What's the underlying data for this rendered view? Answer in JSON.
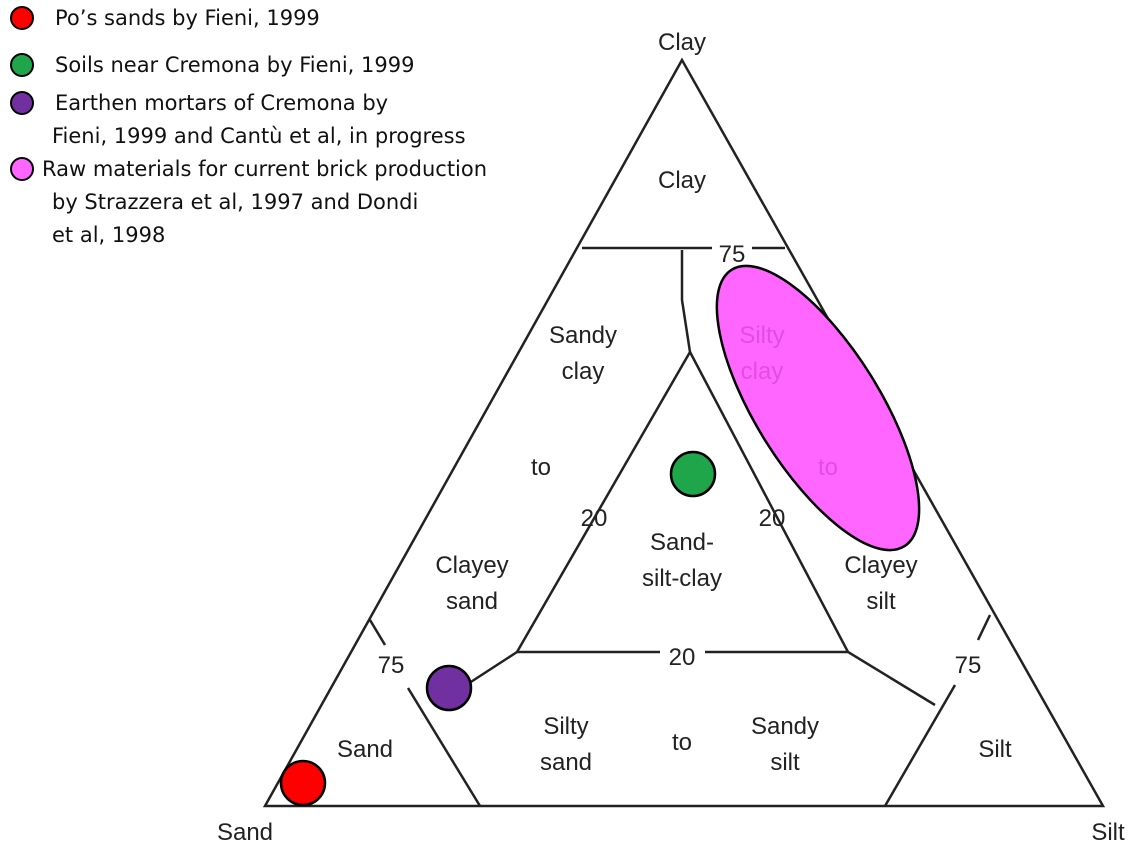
{
  "legend": [
    {
      "label": "Po’s sands by Fieni, 1999",
      "color": "#ff0000"
    },
    {
      "label": "Soils near  Cremona by Fieni, 1999",
      "color": "#1fa64a"
    },
    {
      "label": "Earthen mortars of Cremona by\nFieni, 1999 and Cantù et al, in progress",
      "color": "#7030a0"
    },
    {
      "label": "Raw materials for current brick production\nby Strazzera et al, 1997 and Dondi\net al, 1998",
      "color": "#ff66ff"
    }
  ],
  "vertices": {
    "top": "Clay",
    "left": "Sand",
    "right": "Silt"
  },
  "regions": {
    "clay": "Clay",
    "sandy_clay": "Sandy\nclay",
    "to_left": "to",
    "clayey_sand": "Clayey\nsand",
    "sand_silt_clay": "Sand-\nsilt-clay",
    "silty_clay": "Silty\nclay",
    "to_right": "to",
    "clayey_silt": "Clayey\nsilt",
    "sand": "Sand",
    "silty_sand": "Silty\nsand",
    "to_bottom": "to",
    "sandy_silt": "Sandy\nsilt",
    "silt": "Silt"
  },
  "ticks": {
    "top": "75",
    "inner_left": "20",
    "inner_right": "20",
    "inner_bottom": "20",
    "left": "75",
    "right": "75"
  }
}
